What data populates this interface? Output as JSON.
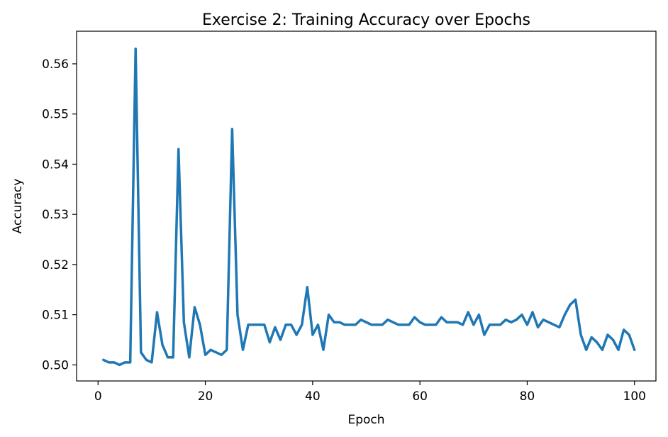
{
  "chart_data": {
    "type": "line",
    "title": "Exercise 2: Training Accuracy over Epochs",
    "xlabel": "Epoch",
    "ylabel": "Accuracy",
    "xlim": [
      -4,
      104
    ],
    "ylim": [
      0.4968,
      0.5665
    ],
    "xticks": [
      0,
      20,
      40,
      60,
      80,
      100
    ],
    "yticks": [
      0.5,
      0.51,
      0.52,
      0.53,
      0.54,
      0.55,
      0.56
    ],
    "xtick_labels": [
      "0",
      "20",
      "40",
      "60",
      "80",
      "100"
    ],
    "ytick_labels": [
      "0.50",
      "0.51",
      "0.52",
      "0.53",
      "0.54",
      "0.55",
      "0.56"
    ],
    "grid": false,
    "series": [
      {
        "color": "#1f77b4",
        "x": [
          1,
          2,
          3,
          4,
          5,
          6,
          7,
          8,
          9,
          10,
          11,
          12,
          13,
          14,
          15,
          16,
          17,
          18,
          19,
          20,
          21,
          22,
          23,
          24,
          25,
          26,
          27,
          28,
          29,
          30,
          31,
          32,
          33,
          34,
          35,
          36,
          37,
          38,
          39,
          40,
          41,
          42,
          43,
          44,
          45,
          46,
          47,
          48,
          49,
          50,
          51,
          52,
          53,
          54,
          55,
          56,
          57,
          58,
          59,
          60,
          61,
          62,
          63,
          64,
          65,
          66,
          67,
          68,
          69,
          70,
          71,
          72,
          73,
          74,
          75,
          76,
          77,
          78,
          79,
          80,
          81,
          82,
          83,
          84,
          85,
          86,
          87,
          88,
          89,
          90,
          91,
          92,
          93,
          94,
          95,
          96,
          97,
          98,
          99,
          100
        ],
        "y": [
          0.501,
          0.5005,
          0.5005,
          0.5,
          0.5005,
          0.5005,
          0.563,
          0.5025,
          0.501,
          0.5005,
          0.5105,
          0.504,
          0.5015,
          0.5015,
          0.543,
          0.5085,
          0.5015,
          0.5115,
          0.508,
          0.502,
          0.503,
          0.5025,
          0.502,
          0.503,
          0.547,
          0.51,
          0.503,
          0.508,
          0.508,
          0.508,
          0.508,
          0.5045,
          0.5075,
          0.505,
          0.508,
          0.508,
          0.506,
          0.508,
          0.5155,
          0.506,
          0.508,
          0.503,
          0.51,
          0.5085,
          0.5085,
          0.508,
          0.508,
          0.508,
          0.509,
          0.5085,
          0.508,
          0.508,
          0.508,
          0.509,
          0.5085,
          0.508,
          0.508,
          0.508,
          0.5095,
          0.5085,
          0.508,
          0.508,
          0.508,
          0.5095,
          0.5085,
          0.5085,
          0.5085,
          0.508,
          0.5105,
          0.508,
          0.51,
          0.506,
          0.508,
          0.508,
          0.508,
          0.509,
          0.5085,
          0.509,
          0.51,
          0.508,
          0.5105,
          0.5075,
          0.509,
          0.5085,
          0.508,
          0.5075,
          0.51,
          0.512,
          0.513,
          0.506,
          0.503,
          0.5055,
          0.5045,
          0.503,
          0.506,
          0.505,
          0.503,
          0.507,
          0.506,
          0.503
        ]
      }
    ]
  }
}
